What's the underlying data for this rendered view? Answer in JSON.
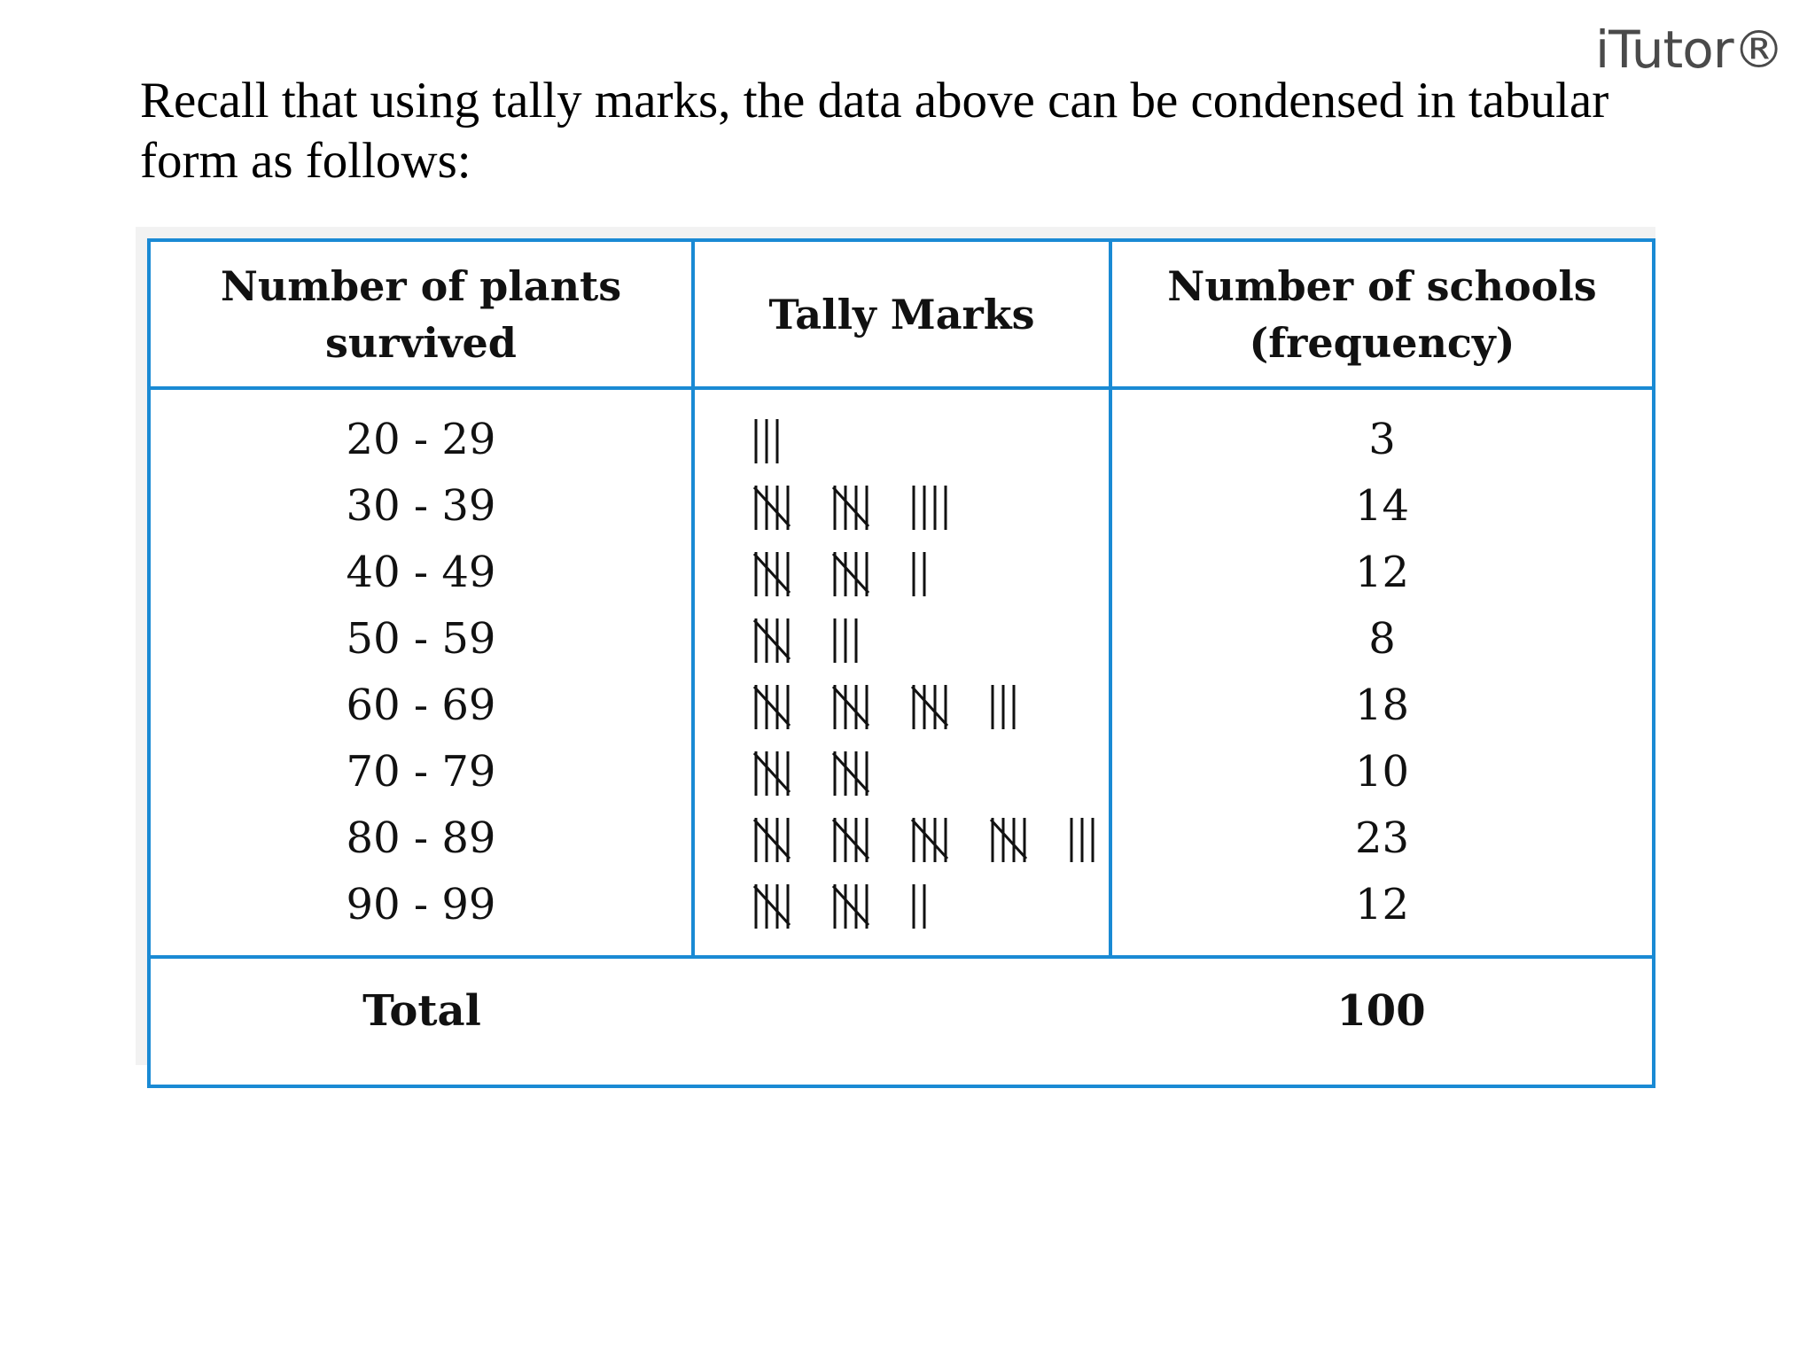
{
  "logo": "iTutor®",
  "intro": "Recall that using tally marks, the data above can be condensed in tabular form as follows:",
  "table": {
    "header": [
      "Number of plants\nsurvived",
      "Tally Marks",
      "Number of schools\n(frequency)"
    ],
    "rows": [
      [
        "20 - 29",
        3
      ],
      [
        "30 - 39",
        14
      ],
      [
        "40 - 49",
        12
      ],
      [
        "50 - 59",
        8
      ],
      [
        "60 - 69",
        18
      ],
      [
        "70 - 79",
        10
      ],
      [
        "80 - 89",
        23
      ],
      [
        "90 - 99",
        12
      ]
    ],
    "total": {
      "label": "Total",
      "value": 100
    }
  }
}
